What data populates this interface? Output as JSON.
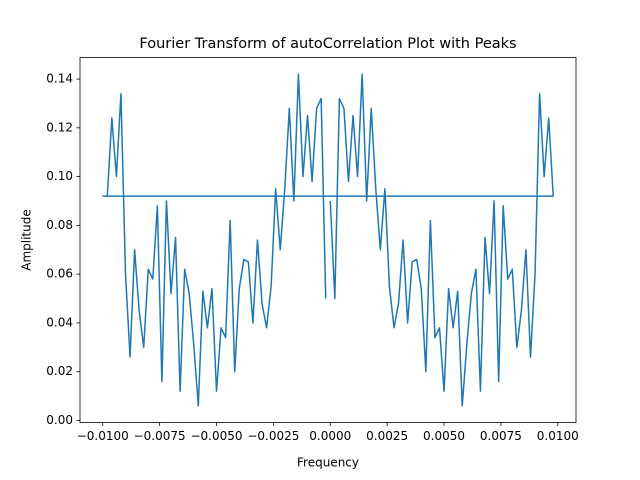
{
  "chart_data": {
    "type": "line",
    "title": "Fourier Transform of autoCorrelation Plot with Peaks",
    "x_label": "Frequency",
    "y_label": "Amplitude",
    "x": [
      0,
      0.0002,
      0.0004,
      0.0006,
      0.0008,
      0.001,
      0.0012,
      0.0014,
      0.0016,
      0.0018,
      0.002,
      0.0022,
      0.0024,
      0.0026,
      0.0028,
      0.003,
      0.0032,
      0.0034,
      0.0036,
      0.0038,
      0.004,
      0.0042,
      0.0044,
      0.0046,
      0.0048,
      0.005,
      0.0052,
      0.0054,
      0.0056,
      0.0058,
      0.006,
      0.0062,
      0.0064,
      0.0066,
      0.0068,
      0.007,
      0.0072,
      0.0074,
      0.0076,
      0.0078,
      0.008,
      0.0082,
      0.0084,
      0.0086,
      0.0088,
      0.009,
      0.0092,
      0.0094,
      0.0096,
      0.0098,
      -0.01,
      -0.0098,
      -0.0096,
      -0.0094,
      -0.0092,
      -0.009,
      -0.0088,
      -0.0086,
      -0.0084,
      -0.0082,
      -0.008,
      -0.0078,
      -0.0076,
      -0.0074,
      -0.0072,
      -0.007,
      -0.0068,
      -0.0066,
      -0.0064,
      -0.0062,
      -0.006,
      -0.0058,
      -0.0056,
      -0.0054,
      -0.0052,
      -0.005,
      -0.0048,
      -0.0046,
      -0.0044,
      -0.0042,
      -0.004,
      -0.0038,
      -0.0036,
      -0.0034,
      -0.0032,
      -0.003,
      -0.0028,
      -0.0026,
      -0.0024,
      -0.0022,
      -0.002,
      -0.0018,
      -0.0016,
      -0.0014,
      -0.0012,
      -0.001,
      -0.0008,
      -0.0006,
      -0.0004,
      -0.0002
    ],
    "series": [
      {
        "name": "Amplitude",
        "color": "#1f77b4",
        "values": [
          0.09,
          0.05,
          0.132,
          0.128,
          0.098,
          0.125,
          0.1,
          0.142,
          0.09,
          0.128,
          0.095,
          0.07,
          0.095,
          0.055,
          0.038,
          0.048,
          0.074,
          0.04,
          0.065,
          0.066,
          0.054,
          0.02,
          0.082,
          0.034,
          0.038,
          0.012,
          0.054,
          0.038,
          0.053,
          0.006,
          0.031,
          0.052,
          0.062,
          0.012,
          0.075,
          0.052,
          0.09,
          0.016,
          0.088,
          0.058,
          0.062,
          0.03,
          0.045,
          0.07,
          0.026,
          0.06,
          0.134,
          0.1,
          0.124,
          0.092,
          0.092,
          0.092,
          0.124,
          0.1,
          0.134,
          0.06,
          0.026,
          0.07,
          0.045,
          0.03,
          0.062,
          0.058,
          0.088,
          0.016,
          0.09,
          0.052,
          0.075,
          0.012,
          0.062,
          0.052,
          0.031,
          0.006,
          0.053,
          0.038,
          0.054,
          0.012,
          0.038,
          0.034,
          0.082,
          0.02,
          0.054,
          0.066,
          0.065,
          0.04,
          0.074,
          0.048,
          0.038,
          0.055,
          0.095,
          0.07,
          0.095,
          0.128,
          0.09,
          0.142,
          0.1,
          0.125,
          0.098,
          0.128,
          0.132,
          0.05
        ]
      }
    ],
    "xlim": [
      -0.011,
      0.0108
    ],
    "ylim": [
      -0.0008,
      0.1488
    ],
    "xticks": [
      {
        "value": -0.01,
        "label": "−0.0100"
      },
      {
        "value": -0.0075,
        "label": "−0.0075"
      },
      {
        "value": -0.005,
        "label": "−0.0050"
      },
      {
        "value": -0.0025,
        "label": "−0.0025"
      },
      {
        "value": 0,
        "label": "0.0000"
      },
      {
        "value": 0.0025,
        "label": "0.0025"
      },
      {
        "value": 0.005,
        "label": "0.0050"
      },
      {
        "value": 0.0075,
        "label": "0.0075"
      },
      {
        "value": 0.01,
        "label": "0.0100"
      }
    ],
    "yticks": [
      {
        "value": 0,
        "label": "0.00"
      },
      {
        "value": 0.02,
        "label": "0.02"
      },
      {
        "value": 0.04,
        "label": "0.04"
      },
      {
        "value": 0.06,
        "label": "0.06"
      },
      {
        "value": 0.08,
        "label": "0.08"
      },
      {
        "value": 0.1,
        "label": "0.10"
      },
      {
        "value": 0.12,
        "label": "0.12"
      },
      {
        "value": 0.14,
        "label": "0.14"
      }
    ]
  }
}
